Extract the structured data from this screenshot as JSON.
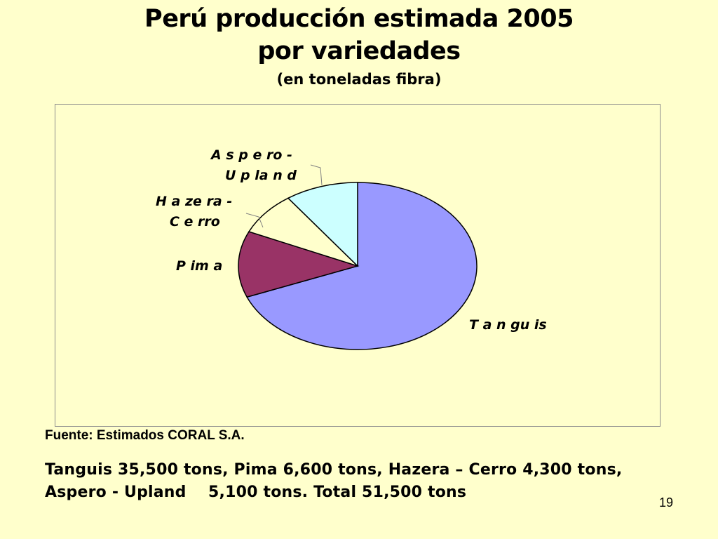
{
  "slide": {
    "title_line1": "Perú producción estimada 2005",
    "title_line2": "por variedades",
    "title_line3": "(en toneladas fibra)",
    "source": "Fuente: Estimados CORAL S.A.",
    "summary_line1": "Tanguis 35,500 tons, Pima 6,600 tons, Hazera – Cerro 4,300 tons,",
    "summary_line2": "Aspero - Upland    5,100 tons. Total 51,500 tons",
    "page_number": "19"
  },
  "chart_data": {
    "type": "pie",
    "slices": [
      {
        "label": "Tanguis",
        "display_label": [
          "T a n gu is"
        ],
        "value": 35500,
        "color": "#9999ff"
      },
      {
        "label": "Pima",
        "display_label": [
          "P im a"
        ],
        "value": 6600,
        "color": "#993366"
      },
      {
        "label": "Hazera - Cerro",
        "display_label": [
          "H a ze ra  -",
          "C e rro"
        ],
        "value": 4300,
        "color": "#ffffcc"
      },
      {
        "label": "Aspero - Upland",
        "display_label": [
          "A s p e ro  -",
          "U p la n d"
        ],
        "value": 5100,
        "color": "#ccffff"
      }
    ],
    "total": 51500,
    "legend": "none",
    "labels": "outside"
  }
}
